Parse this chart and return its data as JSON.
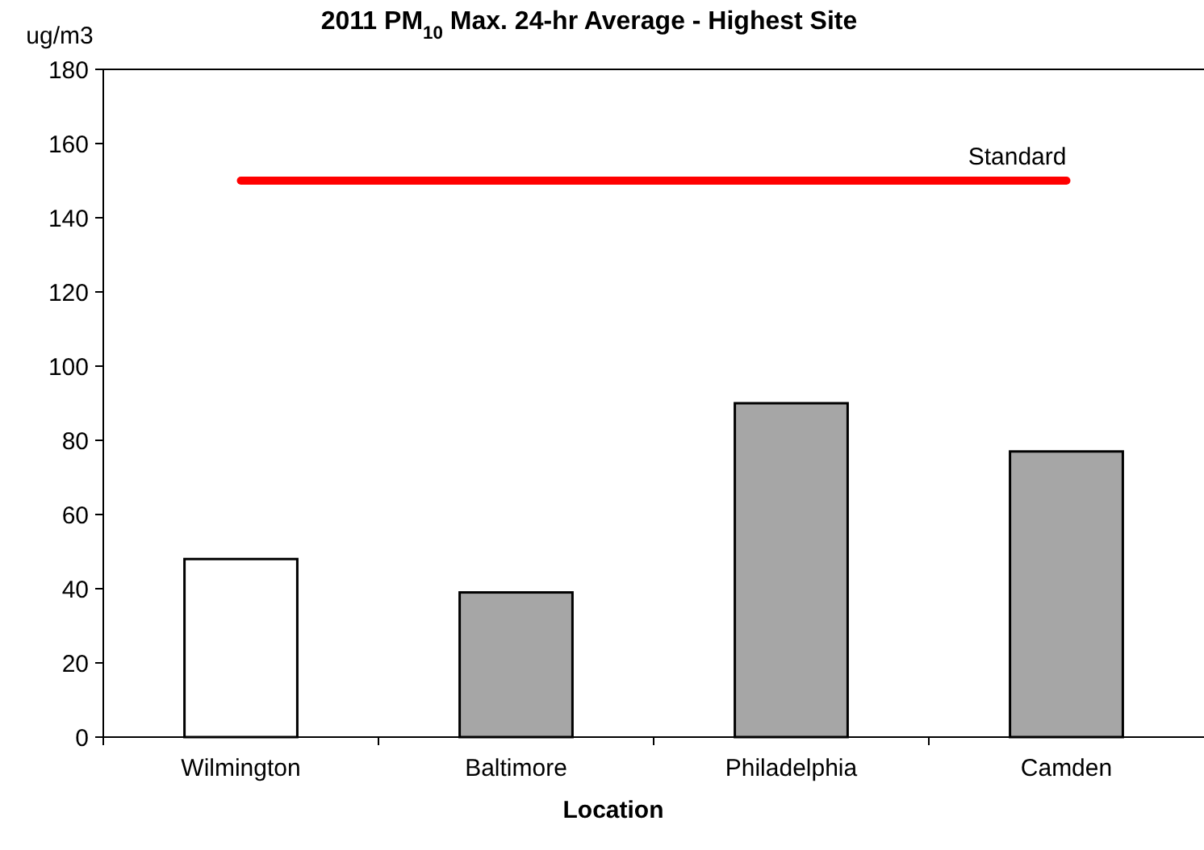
{
  "chart_data": {
    "type": "bar",
    "title": "2011 PM$_{10}$ Max. 24-hr Average - Highest Site",
    "ylabel": "ug/m3",
    "xlabel": "Location",
    "categories": [
      "Wilmington",
      "Baltimore",
      "Philadelphia",
      "Camden"
    ],
    "values": [
      48,
      39,
      90,
      77
    ],
    "colors": [
      "#ffffff",
      "#a6a6a6",
      "#a6a6a6",
      "#a6a6a6"
    ],
    "ylim": [
      0,
      180
    ],
    "yticks": [
      0,
      20,
      40,
      60,
      80,
      100,
      120,
      140,
      160,
      180
    ],
    "grid": false,
    "ref_lines": [
      {
        "axis": "y",
        "value": 150,
        "label": "Standard",
        "color": "#ff0000"
      }
    ]
  }
}
